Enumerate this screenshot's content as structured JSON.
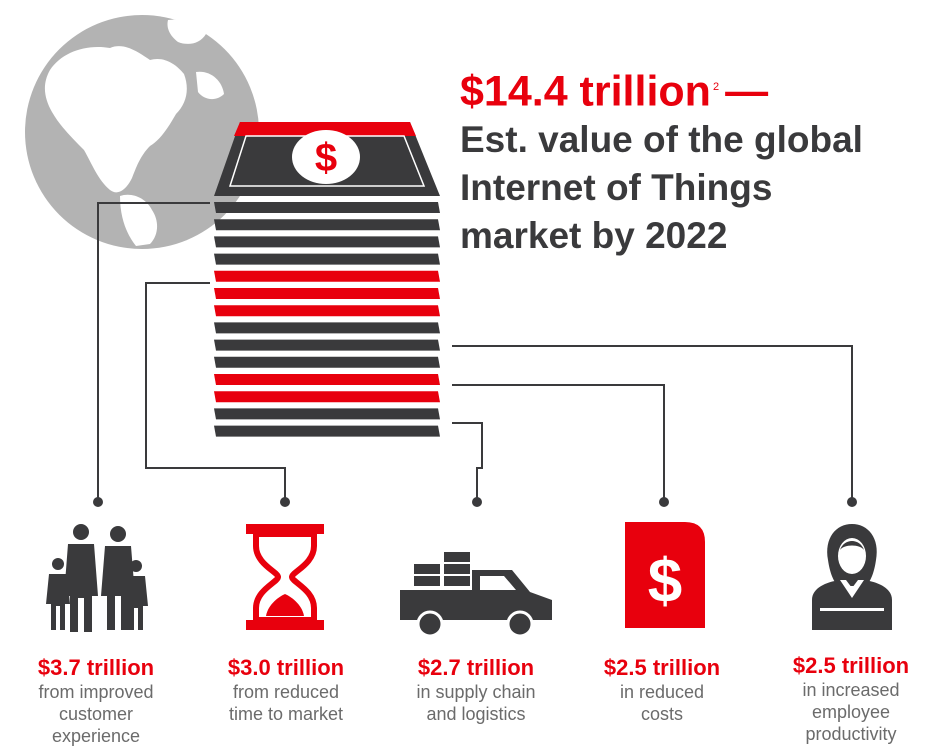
{
  "headline": {
    "amount": "$14.4 trillion",
    "footnote": "2",
    "dash": "—",
    "line1": "Est. value of the global",
    "line2": "Internet of Things",
    "line3": "market by 2022"
  },
  "colors": {
    "red": "#e8000d",
    "dark": "#3a3a3c",
    "gray": "#b0b0b0",
    "muted": "#6b6b6b"
  },
  "stack_icon": "dollar-symbol",
  "items": [
    {
      "icon": "family-icon",
      "amount": "$3.7 trillion",
      "description": "from improved\ncustomer\nexperience"
    },
    {
      "icon": "hourglass-icon",
      "amount": "$3.0 trillion",
      "description": "from reduced\ntime to market"
    },
    {
      "icon": "truck-icon",
      "amount": "$2.7 trillion",
      "description": "in supply chain\nand logistics"
    },
    {
      "icon": "dollar-document-icon",
      "amount": "$2.5 trillion",
      "description": "in reduced\ncosts"
    },
    {
      "icon": "employee-icon",
      "amount": "$2.5 trillion",
      "description": "in increased\nemployee\nproductivity"
    }
  ]
}
